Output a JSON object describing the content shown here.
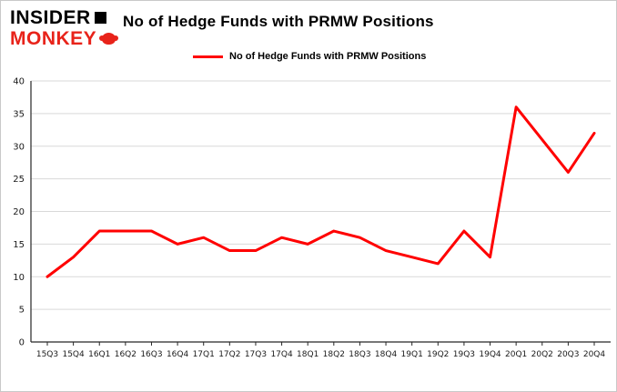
{
  "branding": {
    "line1": "INSIDER",
    "line2": "MONKEY",
    "icons": {
      "box": "black-box-icon",
      "monkey": "monkey-face-icon"
    },
    "brand_red": "#e8231a"
  },
  "chart_data": {
    "type": "line",
    "title": "No of Hedge Funds with PRMW Positions",
    "legend": "No of Hedge Funds with PRMW Positions",
    "legend_position": "top-left",
    "grid": true,
    "line_color": "#ff0000",
    "categories": [
      "15Q3",
      "15Q4",
      "16Q1",
      "16Q2",
      "16Q3",
      "16Q4",
      "17Q1",
      "17Q2",
      "17Q3",
      "17Q4",
      "18Q1",
      "18Q2",
      "18Q3",
      "18Q4",
      "19Q1",
      "19Q2",
      "19Q3",
      "19Q4",
      "20Q1",
      "20Q2",
      "20Q3",
      "20Q4"
    ],
    "values": [
      10,
      13,
      17,
      17,
      17,
      15,
      16,
      14,
      14,
      16,
      15,
      17,
      16,
      14,
      13,
      12,
      17,
      13,
      36,
      31,
      26,
      32
    ],
    "xlabel": "",
    "ylabel": "",
    "ylim": [
      0,
      40
    ],
    "yticks": [
      0,
      5,
      10,
      15,
      20,
      25,
      30,
      35,
      40
    ]
  }
}
